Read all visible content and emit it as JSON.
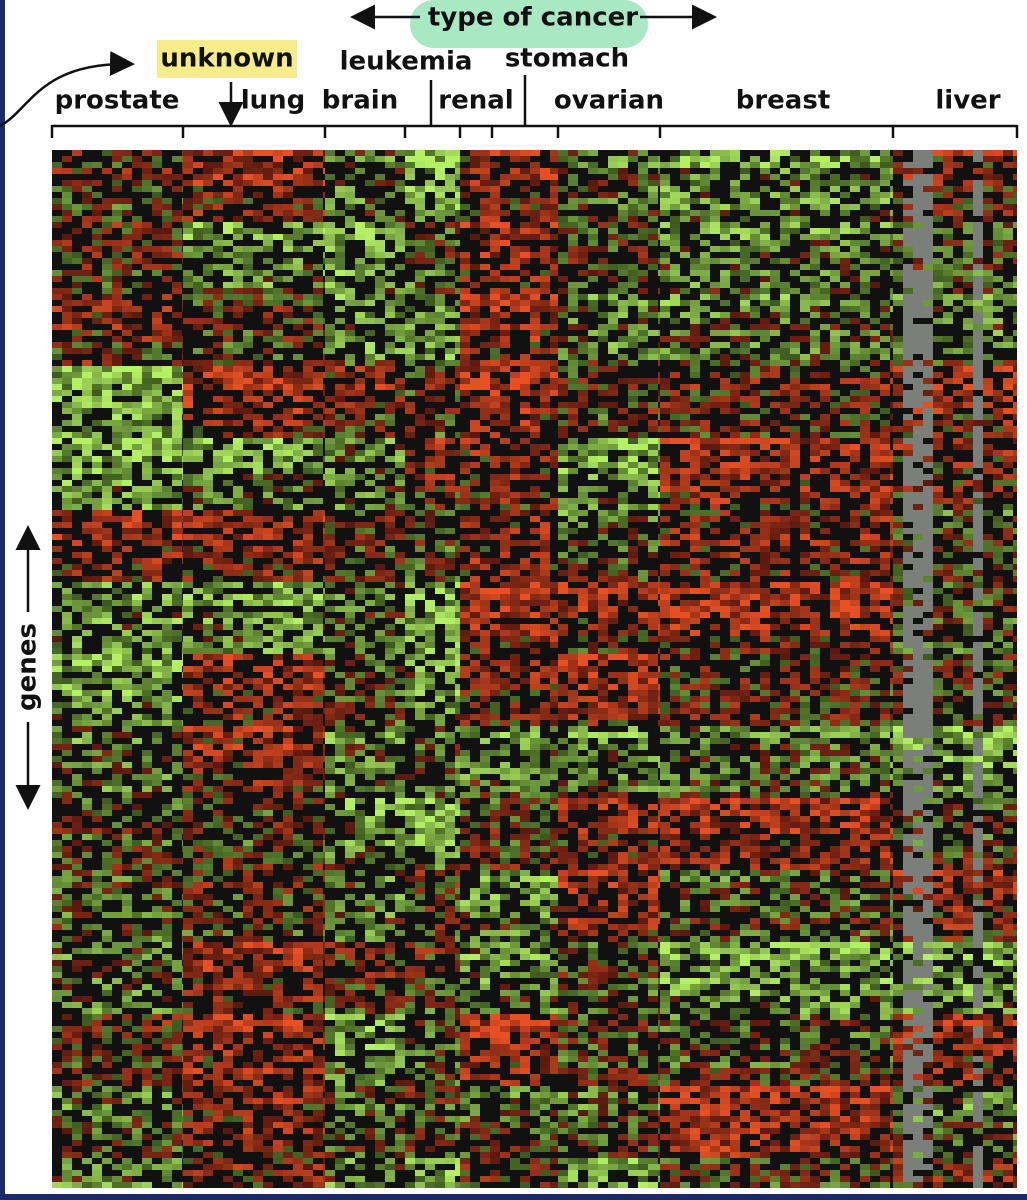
{
  "header": {
    "title": "type of cancer",
    "unknown": "unknown",
    "leukemia": "leukemia",
    "stomach": "stomach"
  },
  "cancers": [
    "prostate",
    "lung",
    "brain",
    "renal",
    "ovarian",
    "breast",
    "liver"
  ],
  "axis_label": "genes"
}
